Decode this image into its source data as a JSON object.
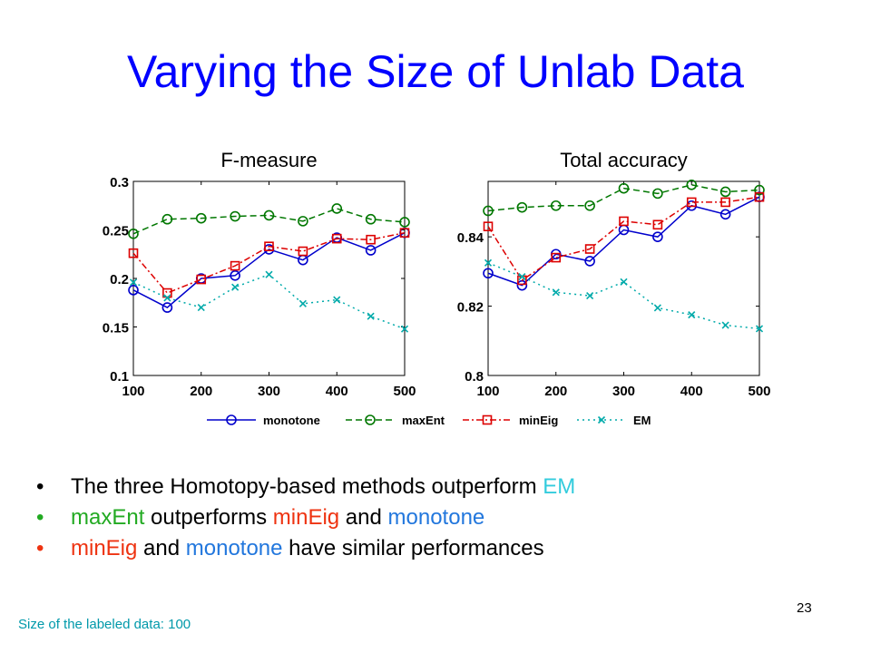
{
  "slide": {
    "title": "Varying the Size of Unlab Data",
    "page_number": "23",
    "footnote": "Size of the labeled data: 100"
  },
  "bullets": [
    {
      "color": "#000000",
      "segments": [
        {
          "text": "The three Homotopy-based methods outperform ",
          "color": "#000000"
        },
        {
          "text": "EM",
          "color": "#33ccdd"
        }
      ]
    },
    {
      "color": "#22aa22",
      "segments": [
        {
          "text": "maxEnt",
          "color": "#22aa22"
        },
        {
          "text": " outperforms ",
          "color": "#000000"
        },
        {
          "text": "minEig",
          "color": "#ee3311"
        },
        {
          "text": " and ",
          "color": "#000000"
        },
        {
          "text": "monotone",
          "color": "#2277dd"
        }
      ]
    },
    {
      "color": "#ee3311",
      "segments": [
        {
          "text": "minEig",
          "color": "#ee3311"
        },
        {
          "text": " and ",
          "color": "#000000"
        },
        {
          "text": "monotone",
          "color": "#2277dd"
        },
        {
          "text": " have similar performances",
          "color": "#000000"
        }
      ]
    }
  ],
  "legend": [
    {
      "name": "monotone",
      "color": "#0000cc",
      "dash": "solid",
      "marker": "circle"
    },
    {
      "name": "maxEnt",
      "color": "#007700",
      "dash": "dash",
      "marker": "circle"
    },
    {
      "name": "minEig",
      "color": "#dd0000",
      "dash": "dashdot",
      "marker": "square"
    },
    {
      "name": "EM",
      "color": "#00aaaa",
      "dash": "dot",
      "marker": "x"
    }
  ],
  "chart_data": [
    {
      "type": "line",
      "title": "F-measure",
      "xlabel": "",
      "ylabel": "",
      "xlim": [
        100,
        500
      ],
      "ylim": [
        0.1,
        0.3
      ],
      "xticks": [
        "100",
        "200",
        "300",
        "400",
        "500"
      ],
      "yticks": [
        "0.1",
        "0.15",
        "0.2",
        "0.25",
        "0.3"
      ],
      "ytick_values": [
        0.1,
        0.15,
        0.2,
        0.25,
        0.3
      ],
      "x": [
        100,
        150,
        200,
        250,
        300,
        350,
        400,
        450,
        500
      ],
      "series": [
        {
          "name": "monotone",
          "values": [
            0.188,
            0.17,
            0.2,
            0.203,
            0.23,
            0.219,
            0.242,
            0.229,
            0.247
          ]
        },
        {
          "name": "maxEnt",
          "values": [
            0.246,
            0.261,
            0.262,
            0.264,
            0.265,
            0.259,
            0.272,
            0.261,
            0.258
          ]
        },
        {
          "name": "minEig",
          "values": [
            0.226,
            0.185,
            0.199,
            0.213,
            0.233,
            0.228,
            0.241,
            0.24,
            0.247
          ]
        },
        {
          "name": "EM",
          "values": [
            0.196,
            0.18,
            0.17,
            0.191,
            0.204,
            0.174,
            0.178,
            0.161,
            0.148
          ]
        }
      ]
    },
    {
      "type": "line",
      "title": "Total accuracy",
      "xlabel": "",
      "ylabel": "",
      "xlim": [
        100,
        500
      ],
      "ylim": [
        0.8,
        0.856
      ],
      "xticks": [
        "100",
        "200",
        "300",
        "400",
        "500"
      ],
      "yticks": [
        "0.8",
        "0.82",
        "0.84"
      ],
      "ytick_values": [
        0.8,
        0.82,
        0.84
      ],
      "x": [
        100,
        150,
        200,
        250,
        300,
        350,
        400,
        450,
        500
      ],
      "series": [
        {
          "name": "monotone",
          "values": [
            0.8295,
            0.826,
            0.835,
            0.833,
            0.842,
            0.84,
            0.849,
            0.8465,
            0.8515
          ]
        },
        {
          "name": "maxEnt",
          "values": [
            0.8475,
            0.8485,
            0.849,
            0.849,
            0.854,
            0.8525,
            0.855,
            0.853,
            0.8535
          ]
        },
        {
          "name": "minEig",
          "values": [
            0.843,
            0.8275,
            0.834,
            0.8365,
            0.8445,
            0.8435,
            0.85,
            0.85,
            0.8515
          ]
        },
        {
          "name": "EM",
          "values": [
            0.8325,
            0.8285,
            0.824,
            0.823,
            0.827,
            0.8195,
            0.8175,
            0.8145,
            0.8135
          ]
        }
      ]
    }
  ]
}
